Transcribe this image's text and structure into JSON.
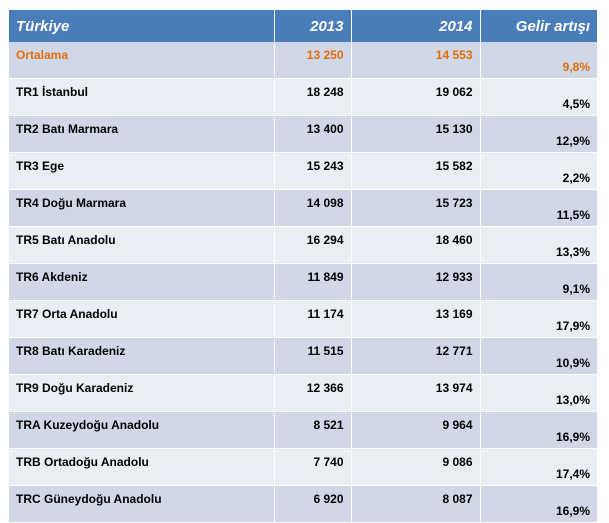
{
  "header": {
    "region": "Türkiye",
    "year1": "2013",
    "year2": "2014",
    "growth": "Gelir artışı"
  },
  "average": {
    "name": "Ortalama",
    "v2013": "13 250",
    "v2014": "14 553",
    "growth": "9,8%"
  },
  "rows": [
    {
      "name": "TR1 İstanbul",
      "v2013": "18 248",
      "v2014": "19 062",
      "growth": "4,5%"
    },
    {
      "name": "TR2 Batı Marmara",
      "v2013": "13 400",
      "v2014": "15 130",
      "growth": "12,9%"
    },
    {
      "name": "TR3 Ege",
      "v2013": "15 243",
      "v2014": "15 582",
      "growth": "2,2%"
    },
    {
      "name": "TR4 Doğu Marmara",
      "v2013": "14 098",
      "v2014": "15 723",
      "growth": "11,5%"
    },
    {
      "name": "TR5 Batı Anadolu",
      "v2013": "16 294",
      "v2014": "18 460",
      "growth": "13,3%"
    },
    {
      "name": "TR6 Akdeniz",
      "v2013": "11 849",
      "v2014": "12 933",
      "growth": "9,1%"
    },
    {
      "name": "TR7 Orta Anadolu",
      "v2013": "11 174",
      "v2014": "13 169",
      "growth": "17,9%"
    },
    {
      "name": "TR8 Batı Karadeniz",
      "v2013": "11 515",
      "v2014": "12 771",
      "growth": "10,9%"
    },
    {
      "name": "TR9 Doğu Karadeniz",
      "v2013": "12 366",
      "v2014": "13 974",
      "growth": "13,0%"
    },
    {
      "name": "TRA Kuzeydoğu  Anadolu",
      "v2013": "8 521",
      "v2014": "9 964",
      "growth": "16,9%"
    },
    {
      "name": "TRB Ortadoğu Anadolu",
      "v2013": "7 740",
      "v2014": "9 086",
      "growth": "17,4%"
    },
    {
      "name": "TRC Güneydoğu  Anadolu",
      "v2013": "6 920",
      "v2014": "8 087",
      "growth": "16,9%"
    }
  ],
  "colors": {
    "header_bg": "#4a7ebb",
    "row_dark": "#d0d8e8",
    "row_light": "#e9edf4",
    "average_text": "#e36c0a"
  }
}
